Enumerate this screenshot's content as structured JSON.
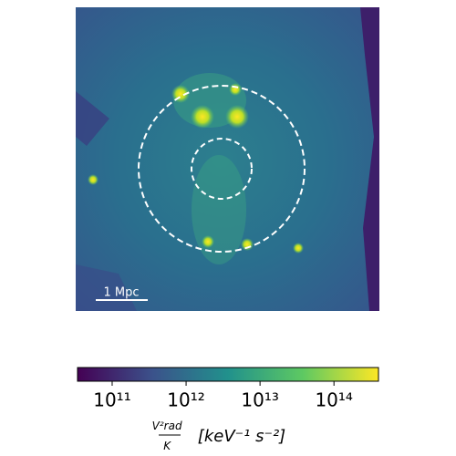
{
  "chart_data": {
    "type": "image",
    "scale_bar_label": "1 Mpc",
    "colorbar": {
      "log": true,
      "xlim": [
        34000000000,
        400000000000000
      ],
      "xticks": [
        {
          "value": 100000000000,
          "label": "10¹¹"
        },
        {
          "value": 1000000000000,
          "label": "10¹²"
        },
        {
          "value": 10000000000000,
          "label": "10¹³"
        },
        {
          "value": 100000000000000,
          "label": "10¹⁴"
        }
      ],
      "colors": [
        "#440154",
        "#3b528b",
        "#21918c",
        "#5ec962",
        "#fde725"
      ],
      "label_numerator": "V²rad",
      "label_denominator": "K",
      "label_units": "[keV⁻¹ s⁻²]"
    }
  }
}
